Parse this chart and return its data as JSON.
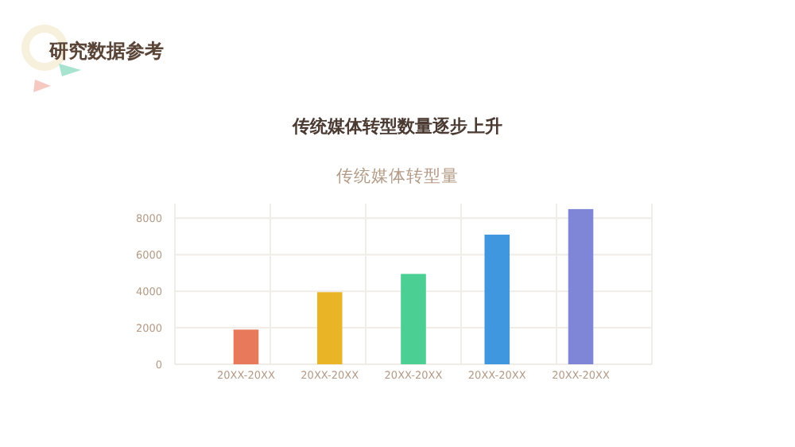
{
  "chart_data": {
    "type": "bar",
    "title": "传统媒体转型数量逐步上升",
    "subtitle": "传统媒体转型量",
    "annotations": [
      "研究数据参考"
    ],
    "categories": [
      "20XX-20XX",
      "20XX-20XX",
      "20XX-20XX",
      "20XX-20XX",
      "20XX-20XX"
    ],
    "values": [
      1900,
      3950,
      4950,
      7100,
      8500
    ],
    "colors": [
      "#e8795a",
      "#e9b425",
      "#4ccf93",
      "#3f97e0",
      "#7f86d8"
    ],
    "ylim": [
      0,
      8800
    ],
    "yticks": [
      0,
      2000,
      4000,
      6000,
      8000
    ],
    "grid": true
  }
}
